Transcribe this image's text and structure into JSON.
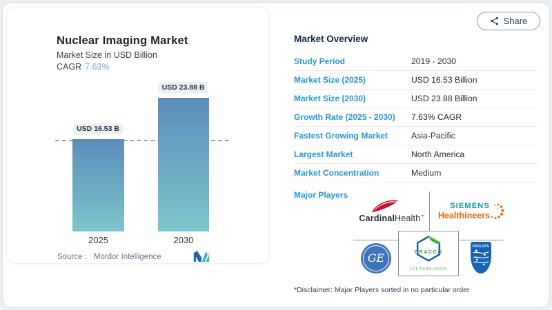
{
  "share": {
    "label": "Share"
  },
  "chart_card": {
    "title": "Nuclear Imaging Market",
    "subtitle": "Market Size in USD Billion",
    "cagr_label": "CAGR",
    "cagr_value": "7.63%",
    "source_label": "Source :",
    "source_value": "Mordor Intelligence"
  },
  "chart_data": {
    "type": "bar",
    "title": "Nuclear Imaging Market",
    "subtitle": "Market Size in USD Billion",
    "unit": "USD Billion",
    "categories": [
      "2025",
      "2030"
    ],
    "values": [
      16.53,
      23.88
    ],
    "bar_labels": [
      "USD 16.53 B",
      "USD 23.88 B"
    ],
    "cagr": "7.63%",
    "baseline_value": 16.53,
    "baseline_style": "dashed",
    "grid": false,
    "bar_gradient_top": "#5b8db9",
    "bar_gradient_bottom": "#7fc5cc"
  },
  "overview": {
    "title": "Market Overview",
    "rows": [
      {
        "label": "Study Period",
        "value": "2019 - 2030"
      },
      {
        "label": "Market Size (2025)",
        "value": "USD 16.53 Billion"
      },
      {
        "label": "Market Size (2030)",
        "value": "USD 23.88 Billion"
      },
      {
        "label": "Growth Rate (2025 - 2030)",
        "value": "7.63% CAGR"
      },
      {
        "label": "Fastest Growing Market",
        "value": "Asia-Pacific"
      },
      {
        "label": "Largest Market",
        "value": "North America"
      },
      {
        "label": "Market Concentration",
        "value": "Medium"
      }
    ],
    "major_players_label": "Major Players",
    "players": [
      "Cardinal Health",
      "Siemens Healthineers",
      "GE",
      "Bracco",
      "Philips"
    ],
    "disclaimer": "*Disclaimer: Major Players sorted in no particular order"
  },
  "logos": {
    "cardinal": {
      "part1": "Cardinal",
      "part2": "Health",
      "tm": "™"
    },
    "siemens": {
      "line1": "SIEMENS",
      "line2": "Healthineers"
    },
    "ge": {
      "monogram": "GE"
    },
    "bracco": {
      "name": "BRACCO",
      "tagline": "LIFE FROM INSIDE"
    },
    "philips": {
      "name": "PHILIPS"
    }
  },
  "colors": {
    "accent_blue": "#2696d2",
    "value_text": "#1e2a38",
    "cagr_value": "#74b2da",
    "bar_top": "#5b8db9",
    "bar_bottom": "#7fc5cc",
    "cardinal_red": "#c8102e",
    "siemens_teal": "#0a9b9b",
    "siemens_orange": "#ec6608",
    "ge_blue": "#3f74ba",
    "bracco_blue": "#1a5dab",
    "bracco_green": "#3aa93f",
    "philips_blue": "#1563b2",
    "mordor_dark": "#1f66b0",
    "mordor_teal": "#36b3c3"
  }
}
